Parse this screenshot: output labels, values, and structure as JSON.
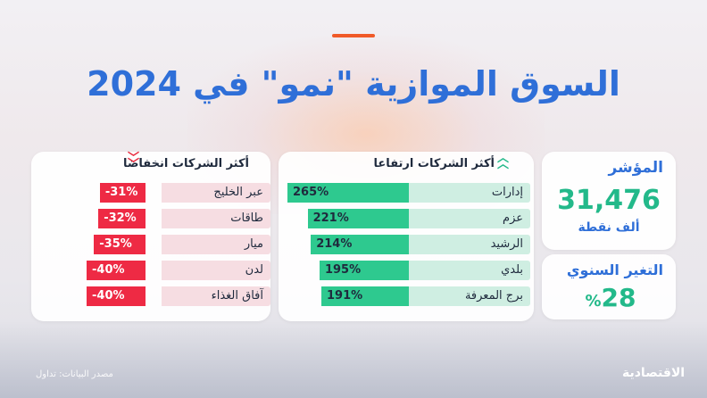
{
  "title": "السوق الموازية \"نمو\" في 2024",
  "index_card": {
    "label": "المؤشر",
    "value": "31,476",
    "unit": "ألف نقطة"
  },
  "yearly_card": {
    "label": "التغير السنوي",
    "value": "28",
    "percent_sign": "%"
  },
  "gainers": {
    "title": "أكثر الشركات ارتفاعا",
    "icon": "double-chevron-up-icon",
    "color": "#2ec98f",
    "items": [
      {
        "name": "إدارات",
        "value": "265%",
        "pct": 265
      },
      {
        "name": "عزم",
        "value": "221%",
        "pct": 221
      },
      {
        "name": "الرشيد",
        "value": "214%",
        "pct": 214
      },
      {
        "name": "بلدي",
        "value": "195%",
        "pct": 195
      },
      {
        "name": "برج المعرفة",
        "value": "191%",
        "pct": 191
      }
    ]
  },
  "losers": {
    "title": "أكثر الشركات انخفاضا",
    "icon": "double-chevron-down-icon",
    "color": "#ee2a44",
    "items": [
      {
        "name": "عبر الخليج",
        "value": "-31%",
        "pct": -31
      },
      {
        "name": "طاقات",
        "value": "-32%",
        "pct": -32
      },
      {
        "name": "ميار",
        "value": "-35%",
        "pct": -35
      },
      {
        "name": "لدن",
        "value": "-40%",
        "pct": -40
      },
      {
        "name": "آفاق الغذاء",
        "value": "-40%",
        "pct": -40
      }
    ]
  },
  "footer": {
    "brand": "الاقتصادية",
    "source": "مصدر البيانات: تداول"
  }
}
